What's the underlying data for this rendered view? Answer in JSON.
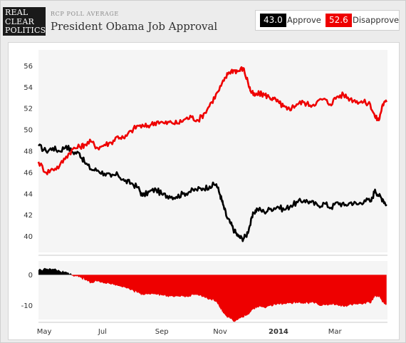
{
  "header": {
    "logo_lines": [
      "REAL",
      "CLEAR",
      "POLITICS"
    ],
    "kicker": "RCP POLL AVERAGE",
    "title": "President Obama Job Approval"
  },
  "legend": {
    "approve_value": "43.0",
    "approve_label": "Approve",
    "disapprove_value": "52.6",
    "disapprove_label": "Disapprove"
  },
  "colors": {
    "approve": "#000000",
    "disapprove": "#ee0000",
    "plot_bg": "#f5f5f5"
  },
  "chart_data": [
    {
      "type": "line",
      "title": "",
      "xlabel": "",
      "ylabel": "",
      "ylim": [
        38.5,
        57.5
      ],
      "yticks": [
        40,
        42,
        44,
        46,
        48,
        50,
        52,
        54,
        56
      ],
      "xticks": [
        {
          "label": "May",
          "date": "2013-05-01"
        },
        {
          "label": "Jul",
          "date": "2013-07-01"
        },
        {
          "label": "Sep",
          "date": "2013-09-01"
        },
        {
          "label": "Nov",
          "date": "2013-11-01"
        },
        {
          "label": "2014",
          "date": "2014-01-01",
          "bold": true
        },
        {
          "label": "Mar",
          "date": "2014-03-01"
        }
      ],
      "xlim": [
        "2013-04-25",
        "2014-04-25"
      ],
      "grid": false,
      "series": [
        {
          "name": "Approve",
          "color": "#000000",
          "points": [
            [
              "2013-04-25",
              48.5
            ],
            [
              "2013-05-03",
              48.0
            ],
            [
              "2013-05-10",
              48.3
            ],
            [
              "2013-05-17",
              48.0
            ],
            [
              "2013-05-24",
              48.5
            ],
            [
              "2013-05-31",
              47.9
            ],
            [
              "2013-06-07",
              47.8
            ],
            [
              "2013-06-12",
              47.0
            ],
            [
              "2013-06-19",
              46.3
            ],
            [
              "2013-06-26",
              46.2
            ],
            [
              "2013-07-03",
              45.9
            ],
            [
              "2013-07-10",
              45.6
            ],
            [
              "2013-07-17",
              45.8
            ],
            [
              "2013-07-24",
              45.2
            ],
            [
              "2013-07-31",
              45.0
            ],
            [
              "2013-08-07",
              44.6
            ],
            [
              "2013-08-12",
              43.8
            ],
            [
              "2013-08-19",
              44.2
            ],
            [
              "2013-08-26",
              44.4
            ],
            [
              "2013-09-02",
              43.9
            ],
            [
              "2013-09-09",
              43.8
            ],
            [
              "2013-09-16",
              43.7
            ],
            [
              "2013-09-23",
              44.0
            ],
            [
              "2013-09-30",
              44.2
            ],
            [
              "2013-10-07",
              44.4
            ],
            [
              "2013-10-14",
              44.5
            ],
            [
              "2013-10-21",
              44.7
            ],
            [
              "2013-10-28",
              44.9
            ],
            [
              "2013-11-01",
              43.9
            ],
            [
              "2013-11-04",
              43.0
            ],
            [
              "2013-11-08",
              41.8
            ],
            [
              "2013-11-12",
              41.2
            ],
            [
              "2013-11-16",
              40.5
            ],
            [
              "2013-11-20",
              40.0
            ],
            [
              "2013-11-24",
              39.8
            ],
            [
              "2013-11-28",
              40.0
            ],
            [
              "2013-12-02",
              41.0
            ],
            [
              "2013-12-06",
              42.2
            ],
            [
              "2013-12-10",
              42.6
            ],
            [
              "2013-12-17",
              42.3
            ],
            [
              "2013-12-24",
              42.6
            ],
            [
              "2013-12-31",
              42.8
            ],
            [
              "2014-01-07",
              42.5
            ],
            [
              "2014-01-14",
              42.9
            ],
            [
              "2014-01-21",
              43.2
            ],
            [
              "2014-01-28",
              43.4
            ],
            [
              "2014-02-04",
              43.2
            ],
            [
              "2014-02-11",
              42.9
            ],
            [
              "2014-02-18",
              43.1
            ],
            [
              "2014-02-25",
              42.7
            ],
            [
              "2014-03-04",
              43.2
            ],
            [
              "2014-03-11",
              42.9
            ],
            [
              "2014-03-18",
              43.2
            ],
            [
              "2014-03-25",
              43.0
            ],
            [
              "2014-04-01",
              43.4
            ],
            [
              "2014-04-08",
              43.3
            ],
            [
              "2014-04-12",
              44.4
            ],
            [
              "2014-04-16",
              43.8
            ],
            [
              "2014-04-20",
              43.5
            ],
            [
              "2014-04-24",
              43.0
            ]
          ]
        },
        {
          "name": "Disapprove",
          "color": "#ee0000",
          "points": [
            [
              "2013-04-25",
              47.0
            ],
            [
              "2013-05-03",
              46.0
            ],
            [
              "2013-05-10",
              46.3
            ],
            [
              "2013-05-17",
              46.6
            ],
            [
              "2013-05-24",
              47.5
            ],
            [
              "2013-05-31",
              48.2
            ],
            [
              "2013-06-07",
              48.4
            ],
            [
              "2013-06-12",
              48.6
            ],
            [
              "2013-06-19",
              48.9
            ],
            [
              "2013-06-26",
              48.3
            ],
            [
              "2013-07-03",
              48.6
            ],
            [
              "2013-07-10",
              48.8
            ],
            [
              "2013-07-17",
              49.4
            ],
            [
              "2013-07-24",
              49.2
            ],
            [
              "2013-07-31",
              49.9
            ],
            [
              "2013-08-07",
              50.4
            ],
            [
              "2013-08-14",
              50.3
            ],
            [
              "2013-08-21",
              50.5
            ],
            [
              "2013-08-28",
              50.8
            ],
            [
              "2013-09-04",
              50.6
            ],
            [
              "2013-09-11",
              50.7
            ],
            [
              "2013-09-18",
              50.6
            ],
            [
              "2013-09-25",
              51.0
            ],
            [
              "2013-10-02",
              51.2
            ],
            [
              "2013-10-09",
              50.9
            ],
            [
              "2013-10-16",
              51.6
            ],
            [
              "2013-10-23",
              52.6
            ],
            [
              "2013-10-30",
              53.6
            ],
            [
              "2013-11-05",
              54.6
            ],
            [
              "2013-11-10",
              55.4
            ],
            [
              "2013-11-15",
              55.6
            ],
            [
              "2013-11-20",
              55.5
            ],
            [
              "2013-11-25",
              55.8
            ],
            [
              "2013-11-30",
              54.5
            ],
            [
              "2013-12-03",
              53.6
            ],
            [
              "2013-12-07",
              53.2
            ],
            [
              "2013-12-12",
              53.4
            ],
            [
              "2013-12-17",
              53.3
            ],
            [
              "2013-12-22",
              53.1
            ],
            [
              "2013-12-27",
              52.9
            ],
            [
              "2014-01-02",
              52.5
            ],
            [
              "2014-01-06",
              52.2
            ],
            [
              "2014-01-10",
              51.9
            ],
            [
              "2014-01-15",
              52.1
            ],
            [
              "2014-01-20",
              52.4
            ],
            [
              "2014-01-27",
              52.6
            ],
            [
              "2014-02-03",
              52.3
            ],
            [
              "2014-02-10",
              52.6
            ],
            [
              "2014-02-17",
              52.9
            ],
            [
              "2014-02-24",
              52.4
            ],
            [
              "2014-03-03",
              53.1
            ],
            [
              "2014-03-10",
              53.3
            ],
            [
              "2014-03-17",
              52.9
            ],
            [
              "2014-03-24",
              52.7
            ],
            [
              "2014-03-31",
              52.6
            ],
            [
              "2014-04-07",
              52.4
            ],
            [
              "2014-04-12",
              51.2
            ],
            [
              "2014-04-16",
              50.9
            ],
            [
              "2014-04-20",
              52.4
            ],
            [
              "2014-04-24",
              52.6
            ]
          ]
        }
      ]
    },
    {
      "type": "area",
      "title": "",
      "xlabel": "",
      "ylabel": "",
      "ylim": [
        -14.5,
        4.5
      ],
      "yticks": [
        0,
        -10
      ],
      "grid": false,
      "derived_from": "Approve minus Disapprove",
      "positive_color": "#000000",
      "negative_color": "#ee0000"
    }
  ]
}
